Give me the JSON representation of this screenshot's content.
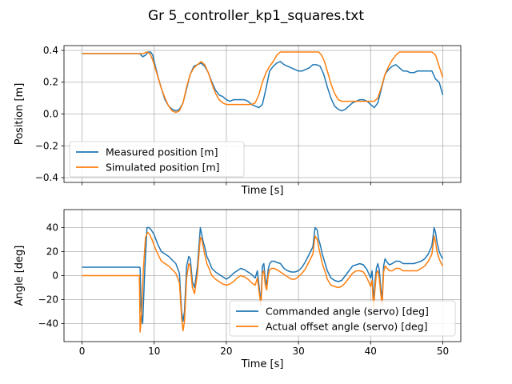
{
  "figure": {
    "suptitle": "Gr 5_controller_kp1_squares.txt"
  },
  "colors": {
    "series1": "#1f77b4",
    "series2": "#ff7f0e",
    "grid": "#b0b0b0"
  },
  "chart_data": [
    {
      "type": "line",
      "xlabel": "Time [s]",
      "ylabel": "Position [m]",
      "xlim": [
        -2.5,
        52.5
      ],
      "ylim": [
        -0.43,
        0.43
      ],
      "xticks": [
        0,
        10,
        20,
        30,
        40,
        50
      ],
      "yticks": [
        -0.4,
        -0.2,
        0.0,
        0.2,
        0.4
      ],
      "ytick_labels": [
        "−0.4",
        "−0.2",
        "0.0",
        "0.2",
        "0.4"
      ],
      "show_xticklabels": false,
      "grid": true,
      "legend_loc": "lower left",
      "series": [
        {
          "name": "Measured position [m]",
          "x": [
            0,
            8,
            8.4,
            8.8,
            9.2,
            9.5,
            9.8,
            10,
            10.5,
            11,
            11.5,
            12,
            12.5,
            13,
            13.5,
            14,
            14.5,
            15,
            15.5,
            16,
            16.5,
            17,
            17.5,
            18,
            18.5,
            19,
            19.5,
            20,
            20.5,
            21,
            21.5,
            22,
            22.5,
            23,
            23.5,
            24,
            24.5,
            25,
            25.5,
            26,
            26.5,
            27,
            27.5,
            28,
            28.5,
            29,
            29.5,
            30,
            30.5,
            31,
            31.5,
            32,
            32.5,
            33,
            33.5,
            34,
            34.5,
            35,
            35.5,
            36,
            36.5,
            37,
            37.5,
            38,
            38.5,
            39,
            39.5,
            40,
            40.5,
            41,
            41.5,
            42,
            42.5,
            43,
            43.5,
            44,
            44.5,
            45,
            45.5,
            46,
            46.5,
            47,
            47.5,
            48,
            48.5,
            49,
            49.5,
            50
          ],
          "y": [
            0.38,
            0.38,
            0.36,
            0.37,
            0.39,
            0.39,
            0.37,
            0.33,
            0.24,
            0.16,
            0.09,
            0.05,
            0.03,
            0.02,
            0.03,
            0.07,
            0.16,
            0.25,
            0.3,
            0.31,
            0.32,
            0.3,
            0.26,
            0.2,
            0.15,
            0.12,
            0.11,
            0.09,
            0.08,
            0.09,
            0.09,
            0.09,
            0.09,
            0.08,
            0.06,
            0.05,
            0.04,
            0.06,
            0.16,
            0.27,
            0.3,
            0.32,
            0.33,
            0.31,
            0.3,
            0.29,
            0.28,
            0.27,
            0.27,
            0.28,
            0.29,
            0.31,
            0.31,
            0.3,
            0.25,
            0.17,
            0.1,
            0.05,
            0.03,
            0.02,
            0.03,
            0.05,
            0.07,
            0.08,
            0.09,
            0.09,
            0.08,
            0.06,
            0.04,
            0.07,
            0.16,
            0.25,
            0.28,
            0.3,
            0.31,
            0.29,
            0.27,
            0.27,
            0.26,
            0.26,
            0.27,
            0.27,
            0.27,
            0.27,
            0.27,
            0.22,
            0.2,
            0.12
          ]
        },
        {
          "name": "Simulated position [m]",
          "x": [
            0,
            8,
            8.5,
            9,
            9.4,
            9.8,
            10.2,
            10.6,
            11,
            11.5,
            12,
            12.5,
            13,
            13.5,
            14,
            14.5,
            15,
            15.5,
            16,
            16.5,
            17,
            17.5,
            18,
            18.5,
            19,
            19.5,
            20,
            20.5,
            21,
            21.5,
            22,
            22.5,
            23,
            23.5,
            24,
            24.5,
            25,
            25.5,
            26,
            26.5,
            27,
            27.5,
            28,
            29,
            30,
            31,
            32,
            32.4,
            32.8,
            33.2,
            33.6,
            34,
            34.5,
            35,
            35.5,
            36,
            36.5,
            37,
            37.5,
            38,
            39,
            40,
            40.5,
            41,
            41.5,
            42,
            42.5,
            43,
            43.5,
            44,
            44.5,
            45,
            46,
            47,
            48,
            48.5,
            49,
            49.5,
            50
          ],
          "y": [
            0.38,
            0.38,
            0.38,
            0.39,
            0.38,
            0.34,
            0.28,
            0.22,
            0.16,
            0.1,
            0.05,
            0.02,
            0.01,
            0.02,
            0.07,
            0.17,
            0.25,
            0.29,
            0.31,
            0.33,
            0.31,
            0.26,
            0.19,
            0.13,
            0.09,
            0.07,
            0.06,
            0.06,
            0.06,
            0.06,
            0.06,
            0.06,
            0.06,
            0.06,
            0.07,
            0.12,
            0.2,
            0.26,
            0.3,
            0.33,
            0.37,
            0.39,
            0.39,
            0.39,
            0.39,
            0.39,
            0.39,
            0.39,
            0.39,
            0.37,
            0.33,
            0.27,
            0.19,
            0.13,
            0.09,
            0.08,
            0.08,
            0.08,
            0.08,
            0.08,
            0.08,
            0.08,
            0.08,
            0.1,
            0.17,
            0.25,
            0.3,
            0.34,
            0.37,
            0.39,
            0.39,
            0.39,
            0.39,
            0.39,
            0.39,
            0.39,
            0.37,
            0.3,
            0.23
          ]
        }
      ]
    },
    {
      "type": "line",
      "xlabel": "Time [s]",
      "ylabel": "Angle [deg]",
      "xlim": [
        -2.5,
        52.5
      ],
      "ylim": [
        -55,
        55
      ],
      "xticks": [
        0,
        10,
        20,
        30,
        40,
        50
      ],
      "yticks": [
        -40,
        -20,
        0,
        20,
        40
      ],
      "ytick_labels": [
        "−40",
        "−20",
        "0",
        "20",
        "40"
      ],
      "show_xticklabels": true,
      "grid": true,
      "legend_loc": "lower right",
      "series": [
        {
          "name": "Commanded angle (servo) [deg]",
          "x": [
            0,
            8,
            8.05,
            8.2,
            8.4,
            8.7,
            9,
            9.3,
            9.6,
            10,
            10.5,
            11,
            11.5,
            12,
            12.5,
            13,
            13.5,
            13.8,
            14,
            14.2,
            14.5,
            14.8,
            15,
            15.3,
            15.6,
            16,
            16.4,
            16.6,
            16.8,
            17,
            17.3,
            17.6,
            18,
            18.5,
            19,
            19.5,
            20,
            20.5,
            21,
            21.5,
            22,
            22.5,
            23,
            23.5,
            24,
            24.3,
            24.6,
            24.8,
            25,
            25.2,
            25.4,
            25.6,
            25.8,
            26,
            26.3,
            26.6,
            27,
            27.5,
            28,
            28.5,
            29,
            29.5,
            30,
            30.5,
            31,
            31.5,
            32,
            32.3,
            32.6,
            32.8,
            33,
            33.3,
            33.7,
            34,
            34.5,
            35,
            35.5,
            36,
            36.5,
            37,
            37.5,
            38,
            38.5,
            39,
            39.5,
            40,
            40.2,
            40.4,
            40.6,
            40.8,
            41,
            41.2,
            41.4,
            41.6,
            41.8,
            42,
            42.3,
            42.6,
            43,
            43.5,
            44,
            44.5,
            45,
            45.5,
            46,
            46.5,
            47,
            47.5,
            48,
            48.5,
            48.8,
            49,
            49.2,
            49.5,
            49.8,
            50
          ],
          "y": [
            7,
            7,
            6,
            -30,
            -40,
            5,
            40,
            40,
            38,
            34,
            26,
            20,
            18,
            16,
            13,
            10,
            2,
            -30,
            -38,
            -30,
            8,
            16,
            14,
            -5,
            -10,
            8,
            40,
            34,
            28,
            24,
            16,
            12,
            6,
            3,
            1,
            -1,
            -3,
            -1,
            2,
            4,
            6,
            5,
            3,
            1,
            -2,
            4,
            -12,
            -22,
            8,
            10,
            -3,
            -8,
            5,
            10,
            12,
            12,
            11,
            10,
            6,
            4,
            3,
            3,
            4,
            7,
            12,
            18,
            24,
            40,
            38,
            30,
            26,
            18,
            10,
            4,
            -2,
            -4,
            -5,
            -4,
            0,
            4,
            8,
            9,
            10,
            9,
            5,
            -2,
            4,
            -22,
            -6,
            6,
            10,
            5,
            -10,
            -20,
            8,
            14,
            11,
            9,
            10,
            12,
            12,
            10,
            10,
            10,
            10,
            11,
            12,
            14,
            18,
            25,
            40,
            36,
            28,
            20,
            16,
            14
          ]
        },
        {
          "name": "Actual offset angle (servo) [deg]",
          "x": [
            0,
            7.95,
            8.05,
            8.15,
            8.3,
            8.5,
            8.8,
            9.1,
            9.4,
            9.7,
            10,
            10.5,
            11,
            11.5,
            12,
            12.5,
            13,
            13.5,
            13.8,
            14,
            14.2,
            14.5,
            14.8,
            15,
            15.3,
            15.6,
            16,
            16.4,
            16.6,
            16.8,
            17,
            17.3,
            17.6,
            18,
            18.5,
            19,
            19.5,
            20,
            20.5,
            21,
            21.5,
            22,
            22.5,
            23,
            23.5,
            24,
            24.3,
            24.6,
            24.8,
            25,
            25.2,
            25.4,
            25.6,
            25.8,
            26,
            26.3,
            26.6,
            27,
            27.5,
            28,
            28.5,
            29,
            29.5,
            30,
            30.5,
            31,
            31.5,
            32,
            32.3,
            32.6,
            32.8,
            33,
            33.3,
            33.7,
            34,
            34.5,
            35,
            35.5,
            36,
            36.5,
            37,
            37.5,
            38,
            38.5,
            39,
            39.5,
            40,
            40.2,
            40.4,
            40.6,
            40.8,
            41,
            41.2,
            41.4,
            41.6,
            41.8,
            42,
            42.3,
            42.6,
            43,
            43.5,
            44,
            44.5,
            45,
            45.5,
            46,
            46.5,
            47,
            47.5,
            48,
            48.5,
            48.8,
            49,
            49.2,
            49.5,
            49.8,
            50
          ],
          "y": [
            0,
            0,
            -47,
            -40,
            -25,
            5,
            32,
            36,
            34,
            30,
            25,
            18,
            12,
            10,
            8,
            5,
            2,
            -6,
            -35,
            -46,
            -38,
            -2,
            10,
            8,
            -10,
            -15,
            2,
            32,
            30,
            24,
            18,
            10,
            6,
            0,
            -3,
            -5,
            -7,
            -8,
            -7,
            -5,
            -2,
            0,
            -1,
            -3,
            -6,
            -8,
            -2,
            -16,
            -25,
            2,
            4,
            -8,
            -12,
            0,
            5,
            6,
            6,
            5,
            3,
            1,
            -1,
            -3,
            -3,
            -1,
            2,
            6,
            12,
            18,
            33,
            30,
            24,
            18,
            10,
            3,
            -3,
            -8,
            -9,
            -10,
            -9,
            -6,
            -2,
            2,
            4,
            4,
            3,
            -2,
            -9,
            -4,
            -28,
            -12,
            2,
            4,
            -2,
            -15,
            -25,
            3,
            8,
            6,
            4,
            4,
            6,
            6,
            4,
            4,
            4,
            4,
            4,
            6,
            8,
            12,
            18,
            33,
            28,
            20,
            14,
            10,
            8
          ]
        }
      ]
    }
  ]
}
